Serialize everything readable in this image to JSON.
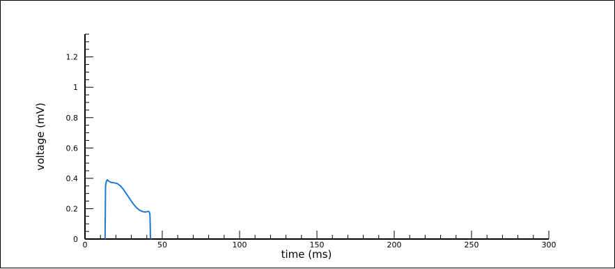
{
  "chart_data": {
    "type": "line",
    "title": "",
    "xlabel": "time (ms)",
    "ylabel": "voltage (mV)",
    "xlim": [
      0,
      300
    ],
    "ylim": [
      0,
      1.35
    ],
    "xticks": [
      0,
      50,
      100,
      150,
      200,
      250,
      300
    ],
    "xtick_labels": [
      "0",
      "50",
      "100",
      "150",
      "200",
      "250",
      "300"
    ],
    "yticks": [
      0,
      0.2,
      0.4,
      0.6,
      0.8,
      1,
      1.2
    ],
    "ytick_labels": [
      "0",
      "0.2",
      "0.4",
      "0.6",
      "0.8",
      "1",
      "1.2"
    ],
    "grid": false,
    "series": [
      {
        "color": "#1e78d6",
        "x": [
          13,
          13.3,
          13.8,
          14.5,
          15.5,
          17,
          19,
          21,
          23,
          25,
          27,
          29,
          31,
          33,
          35,
          37,
          39,
          40,
          40.8,
          41.5,
          42,
          42.2,
          42.3,
          42.4
        ],
        "y": [
          0,
          0.35,
          0.38,
          0.39,
          0.38,
          0.373,
          0.37,
          0.365,
          0.35,
          0.325,
          0.295,
          0.265,
          0.235,
          0.21,
          0.192,
          0.182,
          0.178,
          0.18,
          0.183,
          0.18,
          0.165,
          0.09,
          0.02,
          0
        ]
      }
    ]
  }
}
